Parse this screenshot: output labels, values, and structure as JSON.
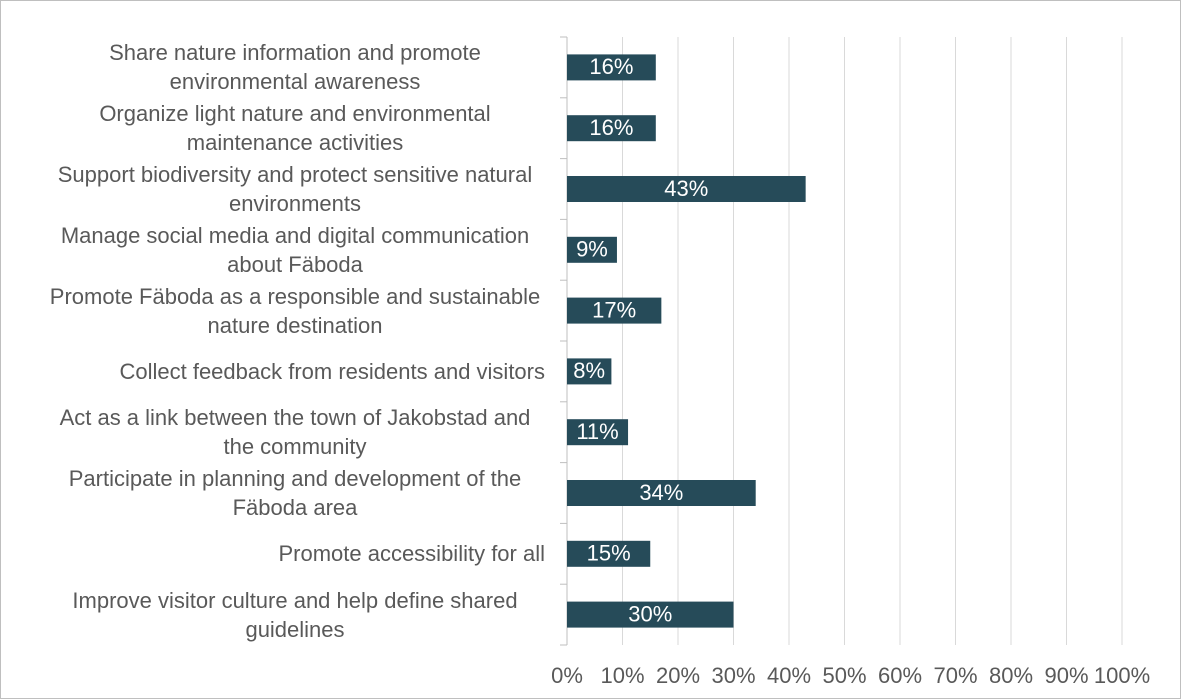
{
  "chart_data": {
    "type": "bar",
    "orientation": "horizontal",
    "categories": [
      "Share nature information and promote environmental awareness",
      "Organize light nature and environmental maintenance activities",
      "Support biodiversity and protect sensitive natural environments",
      "Manage social media and digital communication about Fäboda",
      "Promote Fäboda as a responsible and sustainable nature destination",
      "Collect feedback from residents and visitors",
      "Act as a link between the town of Jakobstad and the community",
      "Participate in planning and development of the Fäboda area",
      "Promote accessibility for all",
      "Improve visitor culture and help define shared guidelines"
    ],
    "values": [
      16,
      16,
      43,
      9,
      17,
      8,
      11,
      34,
      15,
      30
    ],
    "value_labels": [
      "16%",
      "16%",
      "43%",
      "9%",
      "17%",
      "8%",
      "11%",
      "34%",
      "15%",
      "30%"
    ],
    "color": "#264b59",
    "xlim": [
      0,
      100
    ],
    "xticks": [
      {
        "value": 0,
        "label": "0%"
      },
      {
        "value": 10,
        "label": "10%"
      },
      {
        "value": 20,
        "label": "20%"
      },
      {
        "value": 30,
        "label": "30%"
      },
      {
        "value": 40,
        "label": "40%"
      },
      {
        "value": 50,
        "label": "50%"
      },
      {
        "value": 60,
        "label": "60%"
      },
      {
        "value": 70,
        "label": "70%"
      },
      {
        "value": 80,
        "label": "80%"
      },
      {
        "value": 90,
        "label": "90%"
      },
      {
        "value": 100,
        "label": "100%"
      }
    ],
    "grid": true
  }
}
